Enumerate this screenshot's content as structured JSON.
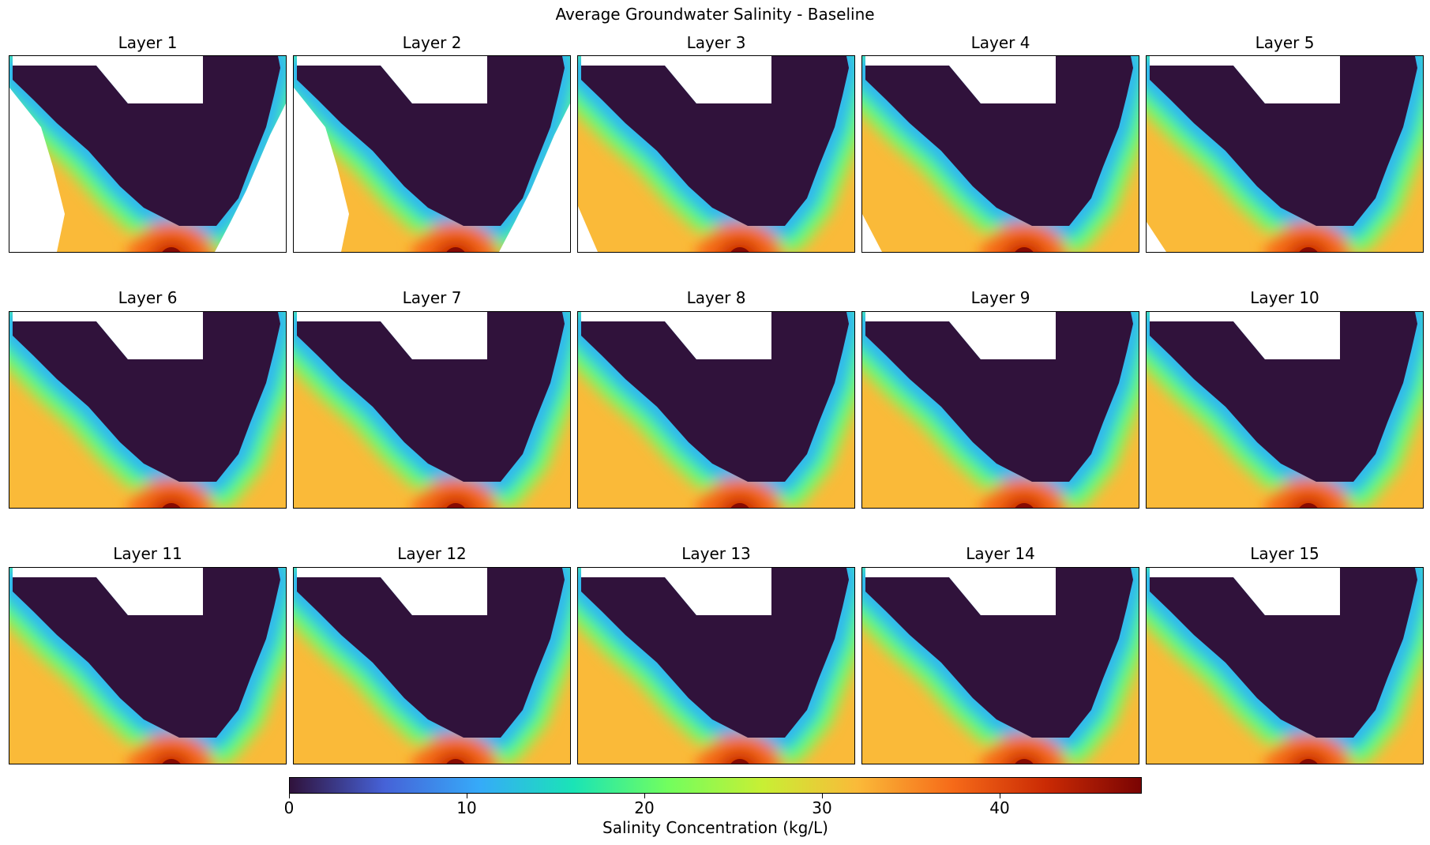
{
  "chart_data": {
    "type": "heatmap",
    "title": "Average Groundwater Salinity - Baseline",
    "panels": [
      {
        "title": "Layer 1"
      },
      {
        "title": "Layer 2"
      },
      {
        "title": "Layer 3"
      },
      {
        "title": "Layer 4"
      },
      {
        "title": "Layer 5"
      },
      {
        "title": "Layer 6"
      },
      {
        "title": "Layer 7"
      },
      {
        "title": "Layer 8"
      },
      {
        "title": "Layer 9"
      },
      {
        "title": "Layer 10"
      },
      {
        "title": "Layer 11"
      },
      {
        "title": "Layer 12"
      },
      {
        "title": "Layer 13"
      },
      {
        "title": "Layer 14"
      },
      {
        "title": "Layer 15"
      }
    ],
    "grid_rows": 3,
    "grid_cols": 5,
    "colorbar": {
      "label": "Salinity Concentration (kg/L)",
      "range": [
        0,
        48
      ],
      "ticks": [
        0,
        10,
        20,
        30,
        40
      ],
      "colormap": "turbo",
      "colors": [
        "#30123b",
        "#4662d7",
        "#36aaf9",
        "#1ae4b6",
        "#72fe5e",
        "#c8ef34",
        "#faba39",
        "#f66b19",
        "#ca2a04",
        "#7a0403"
      ]
    },
    "axes": {
      "ticks_visible": false
    }
  }
}
